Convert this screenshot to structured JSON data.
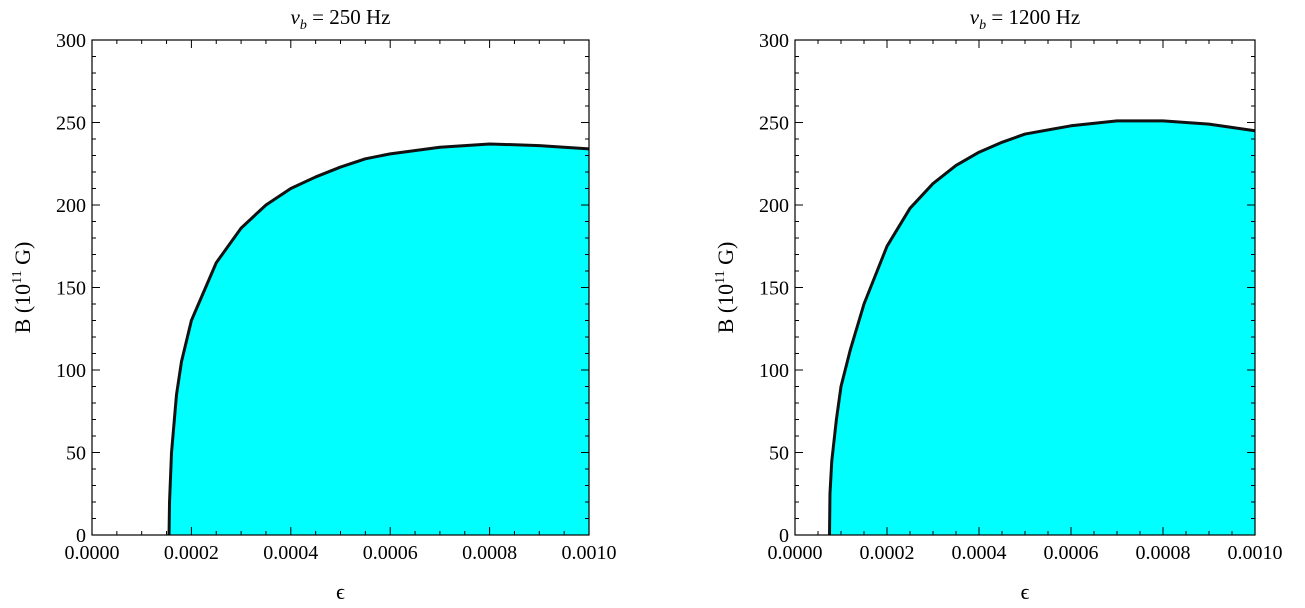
{
  "fill_color": "#00ffff",
  "curve_color": "#111111",
  "chart_data": [
    {
      "type": "area",
      "title_symbol": "ν",
      "title_subscript": "b",
      "title_value": " = 250 Hz",
      "xlabel": "ϵ",
      "ylabel_main": "B (10",
      "ylabel_sup": "11",
      "ylabel_tail": " G)",
      "xlim": [
        0,
        0.001
      ],
      "ylim": [
        0,
        300
      ],
      "x_ticks": [
        0,
        0.0002,
        0.0004,
        0.0006,
        0.0008,
        0.001
      ],
      "x_tick_labels": [
        "0.0000",
        "0.0002",
        "0.0004",
        "0.0006",
        "0.0008",
        "0.0010"
      ],
      "y_ticks": [
        0,
        50,
        100,
        150,
        200,
        250,
        300
      ],
      "y_tick_labels": [
        "0",
        "50",
        "100",
        "150",
        "200",
        "250",
        "300"
      ],
      "boundary": {
        "x": [
          0.000155,
          0.000156,
          0.00016,
          0.00017,
          0.00018,
          0.0002,
          0.00025,
          0.0003,
          0.00035,
          0.0004,
          0.00045,
          0.0005,
          0.00055,
          0.0006,
          0.0007,
          0.0008,
          0.0009,
          0.001
        ],
        "y": [
          0,
          20,
          50,
          85,
          105,
          130,
          165,
          186,
          200,
          210,
          217,
          223,
          228,
          231,
          235,
          237,
          236,
          234
        ]
      }
    },
    {
      "type": "area",
      "title_symbol": "ν",
      "title_subscript": "b",
      "title_value": " = 1200 Hz",
      "xlabel": "ϵ",
      "ylabel_main": "B (10",
      "ylabel_sup": "11",
      "ylabel_tail": " G)",
      "xlim": [
        0,
        0.001
      ],
      "ylim": [
        0,
        300
      ],
      "x_ticks": [
        0,
        0.0002,
        0.0004,
        0.0006,
        0.0008,
        0.001
      ],
      "x_tick_labels": [
        "0.0000",
        "0.0002",
        "0.0004",
        "0.0006",
        "0.0008",
        "0.0010"
      ],
      "y_ticks": [
        0,
        50,
        100,
        150,
        200,
        250,
        300
      ],
      "y_tick_labels": [
        "0",
        "50",
        "100",
        "150",
        "200",
        "250",
        "300"
      ],
      "boundary": {
        "x": [
          7.5e-05,
          7.6e-05,
          8e-05,
          9e-05,
          0.0001,
          0.00012,
          0.00015,
          0.0002,
          0.00025,
          0.0003,
          0.00035,
          0.0004,
          0.00045,
          0.0005,
          0.0006,
          0.0007,
          0.0008,
          0.0009,
          0.001
        ],
        "y": [
          0,
          25,
          45,
          70,
          90,
          112,
          140,
          175,
          198,
          213,
          224,
          232,
          238,
          243,
          248,
          251,
          251,
          249,
          245
        ]
      }
    }
  ]
}
